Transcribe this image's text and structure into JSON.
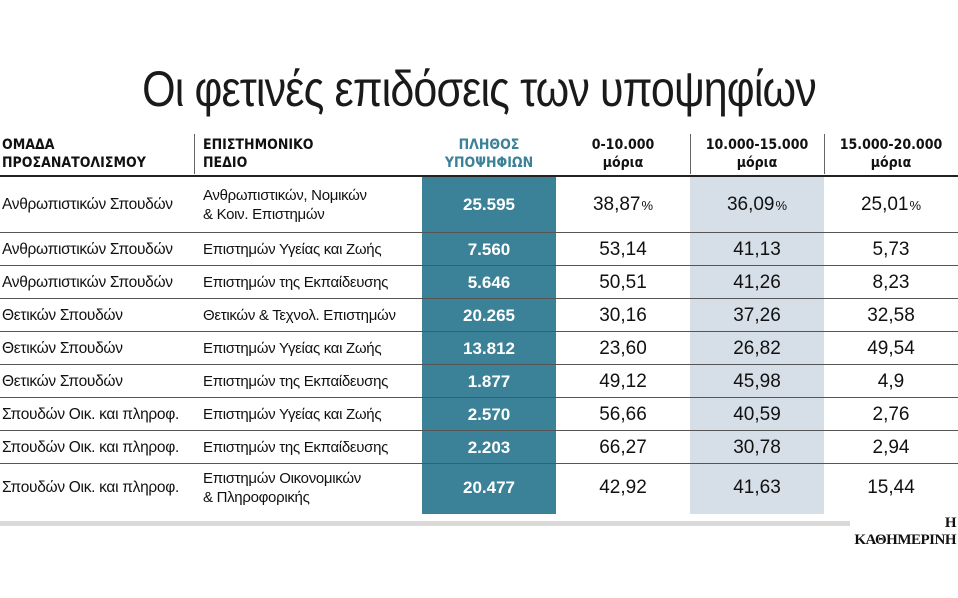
{
  "title": "Οι φετινές επιδόσεις των υποψηφίων",
  "source": "Η ΚΑΘΗΜΕΡΙΝΗ",
  "colors": {
    "count_column": "#3b8197",
    "highlight_column": "#d6dee7",
    "rule": "#555555"
  },
  "chart_data": {
    "type": "table",
    "columns": [
      {
        "lines": [
          "ΟΜΑΔΑ",
          "ΠΡΟΣΑΝΑΤΟΛΙΣΜΟΥ"
        ]
      },
      {
        "lines": [
          "ΕΠΙΣΤΗΜΟΝΙΚΟ",
          "ΠΕΔΙΟ"
        ]
      },
      {
        "lines": [
          "ΠΛΗΘΟΣ",
          "ΥΠΟΨΗΦΙΩΝ"
        ]
      },
      {
        "lines": [
          "0-10.000",
          "μόρια"
        ]
      },
      {
        "lines": [
          "10.000-15.000",
          "μόρια"
        ]
      },
      {
        "lines": [
          "15.000-20.000",
          "μόρια"
        ]
      }
    ],
    "percent_sign": "%",
    "rows": [
      {
        "group": "Ανθρωπιστικών Σπουδών",
        "field": [
          "Ανθρωπιστικών, Νομικών",
          "& Κοιν. Επιστημών"
        ],
        "count": "25.595",
        "r1": "38,87",
        "r2": "36,09",
        "r3": "25,01"
      },
      {
        "group": "Ανθρωπιστικών Σπουδών",
        "field": [
          "Επιστημών Υγείας και Ζωής"
        ],
        "count": "7.560",
        "r1": "53,14",
        "r2": "41,13",
        "r3": "5,73"
      },
      {
        "group": "Ανθρωπιστικών Σπουδών",
        "field": [
          "Επιστημών της Εκπαίδευσης"
        ],
        "count": "5.646",
        "r1": "50,51",
        "r2": "41,26",
        "r3": "8,23"
      },
      {
        "group": "Θετικών Σπουδών",
        "field": [
          "Θετικών & Τεχνολ. Επιστημών"
        ],
        "count": "20.265",
        "r1": "30,16",
        "r2": "37,26",
        "r3": "32,58"
      },
      {
        "group": "Θετικών Σπουδών",
        "field": [
          "Επιστημών Υγείας και Ζωής"
        ],
        "count": "13.812",
        "r1": "23,60",
        "r2": "26,82",
        "r3": "49,54"
      },
      {
        "group": "Θετικών Σπουδών",
        "field": [
          "Επιστημών της Εκπαίδευσης"
        ],
        "count": "1.877",
        "r1": "49,12",
        "r2": "45,98",
        "r3": "4,9"
      },
      {
        "group": "Σπουδών Οικ. και πληροφ.",
        "field": [
          "Επιστημών Υγείας και Ζωής"
        ],
        "count": "2.570",
        "r1": "56,66",
        "r2": "40,59",
        "r3": "2,76"
      },
      {
        "group": "Σπουδών Οικ. και πληροφ.",
        "field": [
          "Επιστημών της Εκπαίδευσης"
        ],
        "count": "2.203",
        "r1": "66,27",
        "r2": "30,78",
        "r3": "2,94"
      },
      {
        "group": "Σπουδών Οικ. και πληροφ.",
        "field": [
          "Επιστημών Οικονομικών",
          "& Πληροφορικής"
        ],
        "count": "20.477",
        "r1": "42,92",
        "r2": "41,63",
        "r3": "15,44"
      }
    ]
  }
}
